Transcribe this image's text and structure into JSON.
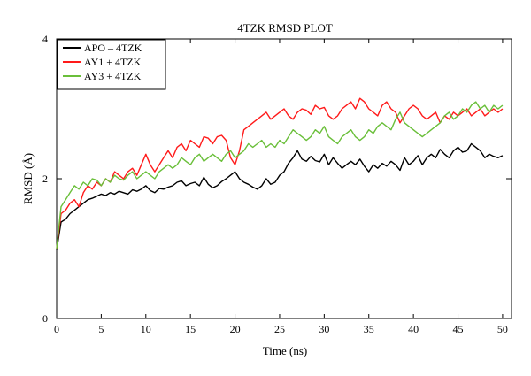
{
  "chart_data": {
    "type": "line",
    "title": "4TZK RMSD PLOT",
    "xlabel": "Time (ns)",
    "ylabel": "RMSD (Å)",
    "xlim": [
      0,
      51
    ],
    "ylim": [
      0,
      4
    ],
    "xticks": [
      0,
      5,
      10,
      15,
      20,
      25,
      30,
      35,
      40,
      45,
      50
    ],
    "yticks": [
      0,
      2,
      4
    ],
    "xtick_labels": [
      "0",
      "5",
      "10",
      "15",
      "20",
      "25",
      "30",
      "35",
      "40",
      "45",
      "50"
    ],
    "ytick_labels": [
      "0",
      "2",
      "4"
    ],
    "legend_position": "top-left",
    "grid": false,
    "series": [
      {
        "name": "APO – 4TZK",
        "color": "#000000",
        "x": [
          0,
          0.5,
          1,
          1.5,
          2,
          2.5,
          3,
          3.5,
          4,
          4.5,
          5,
          5.5,
          6,
          6.5,
          7,
          7.5,
          8,
          8.5,
          9,
          9.5,
          10,
          10.5,
          11,
          11.5,
          12,
          12.5,
          13,
          13.5,
          14,
          14.5,
          15,
          15.5,
          16,
          16.5,
          17,
          17.5,
          18,
          18.5,
          19,
          19.5,
          20,
          20.5,
          21,
          21.5,
          22,
          22.5,
          23,
          23.5,
          24,
          24.5,
          25,
          25.5,
          26,
          26.5,
          27,
          27.5,
          28,
          28.5,
          29,
          29.5,
          30,
          30.5,
          31,
          31.5,
          32,
          32.5,
          33,
          33.5,
          34,
          34.5,
          35,
          35.5,
          36,
          36.5,
          37,
          37.5,
          38,
          38.5,
          39,
          39.5,
          40,
          40.5,
          41,
          41.5,
          42,
          42.5,
          43,
          43.5,
          44,
          44.5,
          45,
          45.5,
          46,
          46.5,
          47,
          47.5,
          48,
          48.5,
          49,
          49.5,
          50
        ],
        "y": [
          0.98,
          1.38,
          1.42,
          1.5,
          1.55,
          1.6,
          1.65,
          1.7,
          1.72,
          1.75,
          1.78,
          1.76,
          1.8,
          1.78,
          1.82,
          1.8,
          1.78,
          1.84,
          1.82,
          1.85,
          1.9,
          1.83,
          1.8,
          1.86,
          1.85,
          1.88,
          1.9,
          1.95,
          1.97,
          1.9,
          1.93,
          1.95,
          1.9,
          2.02,
          1.92,
          1.87,
          1.9,
          1.96,
          2.0,
          2.05,
          2.1,
          2.0,
          1.95,
          1.92,
          1.88,
          1.85,
          1.9,
          2.0,
          1.92,
          1.95,
          2.05,
          2.1,
          2.22,
          2.3,
          2.4,
          2.28,
          2.25,
          2.32,
          2.26,
          2.24,
          2.35,
          2.2,
          2.3,
          2.22,
          2.15,
          2.2,
          2.25,
          2.2,
          2.28,
          2.18,
          2.1,
          2.2,
          2.15,
          2.22,
          2.18,
          2.25,
          2.2,
          2.12,
          2.3,
          2.2,
          2.25,
          2.33,
          2.2,
          2.3,
          2.35,
          2.3,
          2.42,
          2.35,
          2.3,
          2.4,
          2.45,
          2.38,
          2.4,
          2.5,
          2.45,
          2.4,
          2.3,
          2.35,
          2.32,
          2.3,
          2.33
        ]
      },
      {
        "name": "AY1 + 4TZK",
        "color": "#ff1a1a",
        "x": [
          0,
          0.5,
          1,
          1.5,
          2,
          2.5,
          3,
          3.5,
          4,
          4.5,
          5,
          5.5,
          6,
          6.5,
          7,
          7.5,
          8,
          8.5,
          9,
          9.5,
          10,
          10.5,
          11,
          11.5,
          12,
          12.5,
          13,
          13.5,
          14,
          14.5,
          15,
          15.5,
          16,
          16.5,
          17,
          17.5,
          18,
          18.5,
          19,
          19.5,
          20,
          20.5,
          21,
          21.5,
          22,
          22.5,
          23,
          23.5,
          24,
          24.5,
          25,
          25.5,
          26,
          26.5,
          27,
          27.5,
          28,
          28.5,
          29,
          29.5,
          30,
          30.5,
          31,
          31.5,
          32,
          32.5,
          33,
          33.5,
          34,
          34.5,
          35,
          35.5,
          36,
          36.5,
          37,
          37.5,
          38,
          38.5,
          39,
          39.5,
          40,
          40.5,
          41,
          41.5,
          42,
          42.5,
          43,
          43.5,
          44,
          44.5,
          45,
          45.5,
          46,
          46.5,
          47,
          47.5,
          48,
          48.5,
          49,
          49.5,
          50
        ],
        "y": [
          1.0,
          1.5,
          1.55,
          1.65,
          1.7,
          1.6,
          1.8,
          1.9,
          1.85,
          1.95,
          1.9,
          2.0,
          1.95,
          2.1,
          2.05,
          2.0,
          2.1,
          2.15,
          2.05,
          2.2,
          2.35,
          2.2,
          2.1,
          2.2,
          2.3,
          2.4,
          2.3,
          2.45,
          2.5,
          2.4,
          2.55,
          2.5,
          2.45,
          2.6,
          2.58,
          2.5,
          2.6,
          2.62,
          2.55,
          2.3,
          2.2,
          2.4,
          2.7,
          2.75,
          2.8,
          2.85,
          2.9,
          2.95,
          2.85,
          2.9,
          2.95,
          3.0,
          2.9,
          2.85,
          2.95,
          3.0,
          2.98,
          2.92,
          3.05,
          3.0,
          3.02,
          2.9,
          2.85,
          2.9,
          3.0,
          3.05,
          3.1,
          3.0,
          3.15,
          3.1,
          3.0,
          2.95,
          2.9,
          3.05,
          3.1,
          3.0,
          2.95,
          2.8,
          2.9,
          3.0,
          3.05,
          3.0,
          2.9,
          2.85,
          2.9,
          2.95,
          2.8,
          2.9,
          2.85,
          2.95,
          2.9,
          2.95,
          3.0,
          2.9,
          2.95,
          3.0,
          2.9,
          2.95,
          3.0,
          2.95,
          3.0
        ]
      },
      {
        "name": "AY3 + 4TZK",
        "color": "#6abf3a",
        "x": [
          0,
          0.5,
          1,
          1.5,
          2,
          2.5,
          3,
          3.5,
          4,
          4.5,
          5,
          5.5,
          6,
          6.5,
          7,
          7.5,
          8,
          8.5,
          9,
          9.5,
          10,
          10.5,
          11,
          11.5,
          12,
          12.5,
          13,
          13.5,
          14,
          14.5,
          15,
          15.5,
          16,
          16.5,
          17,
          17.5,
          18,
          18.5,
          19,
          19.5,
          20,
          20.5,
          21,
          21.5,
          22,
          22.5,
          23,
          23.5,
          24,
          24.5,
          25,
          25.5,
          26,
          26.5,
          27,
          27.5,
          28,
          28.5,
          29,
          29.5,
          30,
          30.5,
          31,
          31.5,
          32,
          32.5,
          33,
          33.5,
          34,
          34.5,
          35,
          35.5,
          36,
          36.5,
          37,
          37.5,
          38,
          38.5,
          39,
          39.5,
          40,
          40.5,
          41,
          41.5,
          42,
          42.5,
          43,
          43.5,
          44,
          44.5,
          45,
          45.5,
          46,
          46.5,
          47,
          47.5,
          48,
          48.5,
          49,
          49.5,
          50
        ],
        "y": [
          1.0,
          1.6,
          1.7,
          1.8,
          1.9,
          1.85,
          1.95,
          1.9,
          2.0,
          1.98,
          1.9,
          2.0,
          1.95,
          2.05,
          2.0,
          1.98,
          2.05,
          2.1,
          2.0,
          2.05,
          2.1,
          2.05,
          2.0,
          2.1,
          2.15,
          2.2,
          2.15,
          2.2,
          2.3,
          2.25,
          2.2,
          2.3,
          2.35,
          2.25,
          2.3,
          2.35,
          2.3,
          2.25,
          2.35,
          2.4,
          2.3,
          2.35,
          2.4,
          2.5,
          2.45,
          2.5,
          2.55,
          2.45,
          2.5,
          2.45,
          2.55,
          2.5,
          2.6,
          2.7,
          2.65,
          2.6,
          2.55,
          2.6,
          2.7,
          2.65,
          2.75,
          2.6,
          2.55,
          2.5,
          2.6,
          2.65,
          2.7,
          2.6,
          2.55,
          2.6,
          2.7,
          2.65,
          2.75,
          2.8,
          2.75,
          2.7,
          2.85,
          2.95,
          2.8,
          2.75,
          2.7,
          2.65,
          2.6,
          2.65,
          2.7,
          2.75,
          2.8,
          2.9,
          2.95,
          2.85,
          2.9,
          3.0,
          2.95,
          3.05,
          3.1,
          3.0,
          3.05,
          2.95,
          3.05,
          3.0,
          3.05
        ]
      }
    ]
  }
}
